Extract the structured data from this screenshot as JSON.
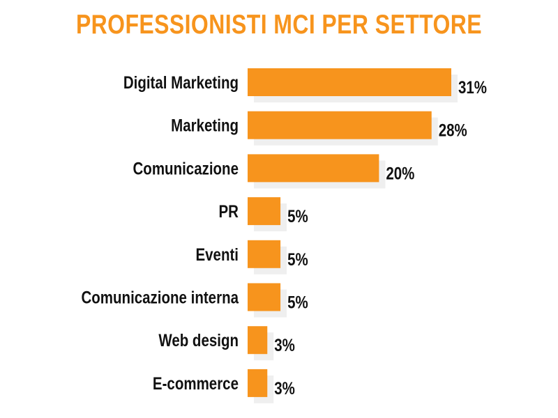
{
  "chart_data": {
    "type": "bar",
    "orientation": "horizontal",
    "title": "PROFESSIONISTI MCI PER SETTORE",
    "categories": [
      "Digital Marketing",
      "Marketing",
      "Comunicazione",
      "PR",
      "Eventi",
      "Comunicazione interna",
      "Web design",
      "E-commerce"
    ],
    "values": [
      31,
      28,
      20,
      5,
      5,
      5,
      3,
      3
    ],
    "value_labels": [
      "31%",
      "28%",
      "20%",
      "5%",
      "5%",
      "5%",
      "3%",
      "3%"
    ],
    "unit": "%",
    "xlim": [
      0,
      31
    ],
    "grid": false,
    "legend": "none",
    "colors": {
      "bar": "#f7941d",
      "bar_shadow": "#efefef",
      "title": "#f7941d",
      "text": "#111111"
    }
  }
}
